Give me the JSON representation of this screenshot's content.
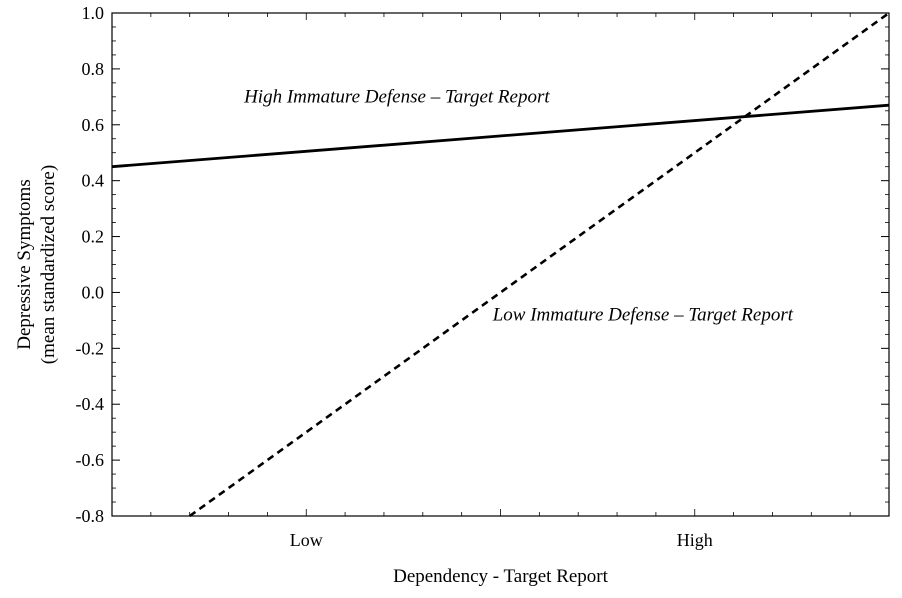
{
  "chart_data": {
    "type": "line",
    "title": "",
    "xlabel": "Dependency - Target Report",
    "ylabel": [
      "Depressive Symptoms",
      "(mean standardized score)"
    ],
    "xlim": [
      0,
      1
    ],
    "ylim": [
      -0.8,
      1.0
    ],
    "x_ticks": [
      {
        "label": "Low",
        "value": 0.25
      },
      {
        "label": "High",
        "value": 0.75
      }
    ],
    "y_ticks": [
      {
        "label": "1.0",
        "value": 1.0
      },
      {
        "label": "0.8",
        "value": 0.8
      },
      {
        "label": "0.6",
        "value": 0.6
      },
      {
        "label": "0.4",
        "value": 0.4
      },
      {
        "label": "0.2",
        "value": 0.2
      },
      {
        "label": "0.0",
        "value": 0.0
      },
      {
        "label": "-0.2",
        "value": -0.2
      },
      {
        "label": "-0.4",
        "value": -0.4
      },
      {
        "label": "-0.6",
        "value": -0.6
      },
      {
        "label": "-0.8",
        "value": -0.8
      }
    ],
    "grid": false,
    "series": [
      {
        "name": "High Immature Defense – Target Report",
        "style": "solid",
        "x": [
          0,
          1
        ],
        "y": [
          0.45,
          0.67
        ]
      },
      {
        "name": "Low Immature Defense – Target Report",
        "style": "dashed",
        "x": [
          0.1,
          1
        ],
        "y": [
          -0.8,
          1.0
        ]
      }
    ],
    "annotations": [
      {
        "text": "High Immature Defense – Target Report",
        "x": 0.17,
        "y": 0.68
      },
      {
        "text": "Low Immature Defense – Target Report",
        "x": 0.49,
        "y": -0.1
      }
    ]
  }
}
